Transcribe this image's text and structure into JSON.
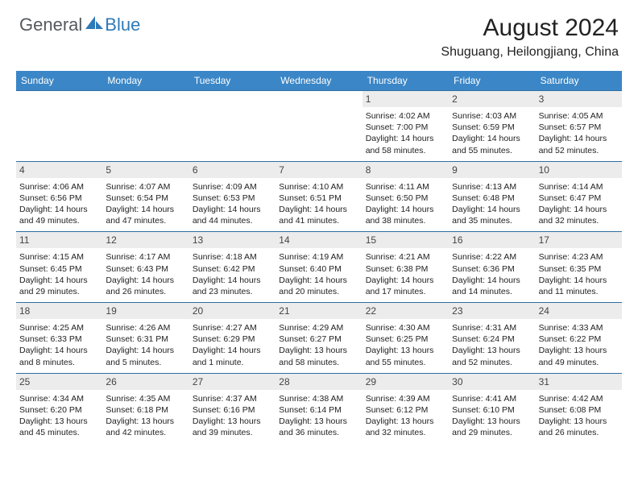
{
  "brand": {
    "part1": "General",
    "part2": "Blue"
  },
  "title": "August 2024",
  "location": "Shuguang, Heilongjiang, China",
  "colors": {
    "header_bg": "#3b86c6",
    "header_text": "#ffffff",
    "daynum_bg": "#ececec",
    "rule": "#2f6ea3",
    "brand_gray": "#555a5f",
    "brand_blue": "#2d7ab8"
  },
  "daysOfWeek": [
    "Sunday",
    "Monday",
    "Tuesday",
    "Wednesday",
    "Thursday",
    "Friday",
    "Saturday"
  ],
  "weeks": [
    [
      null,
      null,
      null,
      null,
      {
        "n": "1",
        "sunrise": "Sunrise: 4:02 AM",
        "sunset": "Sunset: 7:00 PM",
        "daylight": "Daylight: 14 hours and 58 minutes."
      },
      {
        "n": "2",
        "sunrise": "Sunrise: 4:03 AM",
        "sunset": "Sunset: 6:59 PM",
        "daylight": "Daylight: 14 hours and 55 minutes."
      },
      {
        "n": "3",
        "sunrise": "Sunrise: 4:05 AM",
        "sunset": "Sunset: 6:57 PM",
        "daylight": "Daylight: 14 hours and 52 minutes."
      }
    ],
    [
      {
        "n": "4",
        "sunrise": "Sunrise: 4:06 AM",
        "sunset": "Sunset: 6:56 PM",
        "daylight": "Daylight: 14 hours and 49 minutes."
      },
      {
        "n": "5",
        "sunrise": "Sunrise: 4:07 AM",
        "sunset": "Sunset: 6:54 PM",
        "daylight": "Daylight: 14 hours and 47 minutes."
      },
      {
        "n": "6",
        "sunrise": "Sunrise: 4:09 AM",
        "sunset": "Sunset: 6:53 PM",
        "daylight": "Daylight: 14 hours and 44 minutes."
      },
      {
        "n": "7",
        "sunrise": "Sunrise: 4:10 AM",
        "sunset": "Sunset: 6:51 PM",
        "daylight": "Daylight: 14 hours and 41 minutes."
      },
      {
        "n": "8",
        "sunrise": "Sunrise: 4:11 AM",
        "sunset": "Sunset: 6:50 PM",
        "daylight": "Daylight: 14 hours and 38 minutes."
      },
      {
        "n": "9",
        "sunrise": "Sunrise: 4:13 AM",
        "sunset": "Sunset: 6:48 PM",
        "daylight": "Daylight: 14 hours and 35 minutes."
      },
      {
        "n": "10",
        "sunrise": "Sunrise: 4:14 AM",
        "sunset": "Sunset: 6:47 PM",
        "daylight": "Daylight: 14 hours and 32 minutes."
      }
    ],
    [
      {
        "n": "11",
        "sunrise": "Sunrise: 4:15 AM",
        "sunset": "Sunset: 6:45 PM",
        "daylight": "Daylight: 14 hours and 29 minutes."
      },
      {
        "n": "12",
        "sunrise": "Sunrise: 4:17 AM",
        "sunset": "Sunset: 6:43 PM",
        "daylight": "Daylight: 14 hours and 26 minutes."
      },
      {
        "n": "13",
        "sunrise": "Sunrise: 4:18 AM",
        "sunset": "Sunset: 6:42 PM",
        "daylight": "Daylight: 14 hours and 23 minutes."
      },
      {
        "n": "14",
        "sunrise": "Sunrise: 4:19 AM",
        "sunset": "Sunset: 6:40 PM",
        "daylight": "Daylight: 14 hours and 20 minutes."
      },
      {
        "n": "15",
        "sunrise": "Sunrise: 4:21 AM",
        "sunset": "Sunset: 6:38 PM",
        "daylight": "Daylight: 14 hours and 17 minutes."
      },
      {
        "n": "16",
        "sunrise": "Sunrise: 4:22 AM",
        "sunset": "Sunset: 6:36 PM",
        "daylight": "Daylight: 14 hours and 14 minutes."
      },
      {
        "n": "17",
        "sunrise": "Sunrise: 4:23 AM",
        "sunset": "Sunset: 6:35 PM",
        "daylight": "Daylight: 14 hours and 11 minutes."
      }
    ],
    [
      {
        "n": "18",
        "sunrise": "Sunrise: 4:25 AM",
        "sunset": "Sunset: 6:33 PM",
        "daylight": "Daylight: 14 hours and 8 minutes."
      },
      {
        "n": "19",
        "sunrise": "Sunrise: 4:26 AM",
        "sunset": "Sunset: 6:31 PM",
        "daylight": "Daylight: 14 hours and 5 minutes."
      },
      {
        "n": "20",
        "sunrise": "Sunrise: 4:27 AM",
        "sunset": "Sunset: 6:29 PM",
        "daylight": "Daylight: 14 hours and 1 minute."
      },
      {
        "n": "21",
        "sunrise": "Sunrise: 4:29 AM",
        "sunset": "Sunset: 6:27 PM",
        "daylight": "Daylight: 13 hours and 58 minutes."
      },
      {
        "n": "22",
        "sunrise": "Sunrise: 4:30 AM",
        "sunset": "Sunset: 6:25 PM",
        "daylight": "Daylight: 13 hours and 55 minutes."
      },
      {
        "n": "23",
        "sunrise": "Sunrise: 4:31 AM",
        "sunset": "Sunset: 6:24 PM",
        "daylight": "Daylight: 13 hours and 52 minutes."
      },
      {
        "n": "24",
        "sunrise": "Sunrise: 4:33 AM",
        "sunset": "Sunset: 6:22 PM",
        "daylight": "Daylight: 13 hours and 49 minutes."
      }
    ],
    [
      {
        "n": "25",
        "sunrise": "Sunrise: 4:34 AM",
        "sunset": "Sunset: 6:20 PM",
        "daylight": "Daylight: 13 hours and 45 minutes."
      },
      {
        "n": "26",
        "sunrise": "Sunrise: 4:35 AM",
        "sunset": "Sunset: 6:18 PM",
        "daylight": "Daylight: 13 hours and 42 minutes."
      },
      {
        "n": "27",
        "sunrise": "Sunrise: 4:37 AM",
        "sunset": "Sunset: 6:16 PM",
        "daylight": "Daylight: 13 hours and 39 minutes."
      },
      {
        "n": "28",
        "sunrise": "Sunrise: 4:38 AM",
        "sunset": "Sunset: 6:14 PM",
        "daylight": "Daylight: 13 hours and 36 minutes."
      },
      {
        "n": "29",
        "sunrise": "Sunrise: 4:39 AM",
        "sunset": "Sunset: 6:12 PM",
        "daylight": "Daylight: 13 hours and 32 minutes."
      },
      {
        "n": "30",
        "sunrise": "Sunrise: 4:41 AM",
        "sunset": "Sunset: 6:10 PM",
        "daylight": "Daylight: 13 hours and 29 minutes."
      },
      {
        "n": "31",
        "sunrise": "Sunrise: 4:42 AM",
        "sunset": "Sunset: 6:08 PM",
        "daylight": "Daylight: 13 hours and 26 minutes."
      }
    ]
  ]
}
